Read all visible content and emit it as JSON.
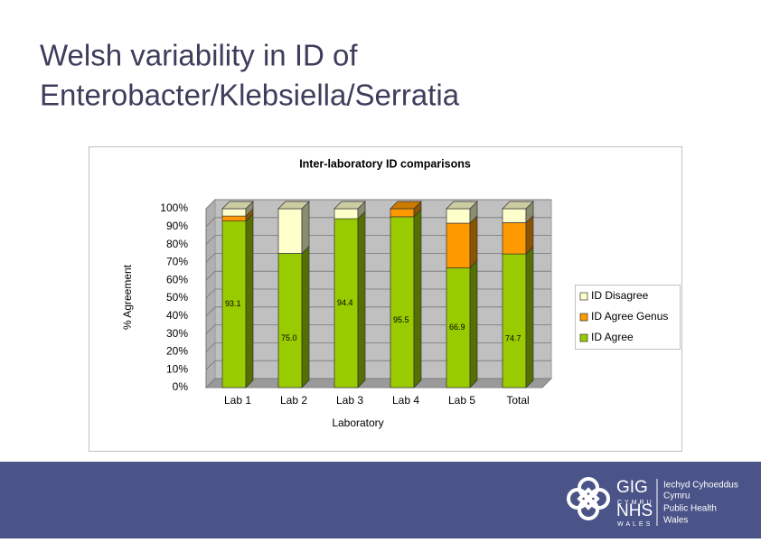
{
  "slide": {
    "title": [
      "Welsh variability in ID of",
      "Enterobacter/Klebsiella/Serratia"
    ]
  },
  "chart_data": {
    "type": "stacked-bar-3d",
    "title": "Inter-laboratory ID comparisons",
    "x_label": "Laboratory",
    "y_label": "% Agreement",
    "categories": [
      "Lab 1",
      "Lab 2",
      "Lab 3",
      "Lab 4",
      "Lab 5",
      "Total"
    ],
    "series": [
      {
        "name": "ID Agree",
        "color": "#99cc00",
        "values": [
          93.1,
          75.0,
          94.4,
          95.5,
          66.9,
          74.7
        ],
        "value_labels": [
          "93.1",
          "75.0",
          "94.4",
          "95.5",
          "66.9",
          "74.7"
        ]
      },
      {
        "name": "ID Agree Genus",
        "color": "#ff9900",
        "values": [
          2.8,
          0,
          0,
          4.5,
          25,
          17.5
        ]
      },
      {
        "name": "ID Disagree",
        "color": "#ffffcc",
        "values": [
          4.1,
          25,
          5.6,
          0,
          8.1,
          7.8
        ]
      }
    ],
    "ylim": [
      0,
      100
    ],
    "yticks": [
      {
        "value": 0,
        "label": "0%"
      },
      {
        "value": 10,
        "label": "10%"
      },
      {
        "value": 20,
        "label": "20%"
      },
      {
        "value": 30,
        "label": "30%"
      },
      {
        "value": 40,
        "label": "40%"
      },
      {
        "value": 50,
        "label": "50%"
      },
      {
        "value": 60,
        "label": "60%"
      },
      {
        "value": 70,
        "label": "70%"
      },
      {
        "value": 80,
        "label": "80%"
      },
      {
        "value": 90,
        "label": "90%"
      },
      {
        "value": 100,
        "label": "100%"
      }
    ],
    "grid": true,
    "legend": "right"
  },
  "footer": {
    "logo": {
      "gig": "GIG",
      "cymru": "CYMRU",
      "nhs": "NHS",
      "wales": "WALES",
      "org": [
        "Iechyd Cyhoeddus",
        "Cymru",
        "Public Health",
        "Wales"
      ]
    }
  }
}
